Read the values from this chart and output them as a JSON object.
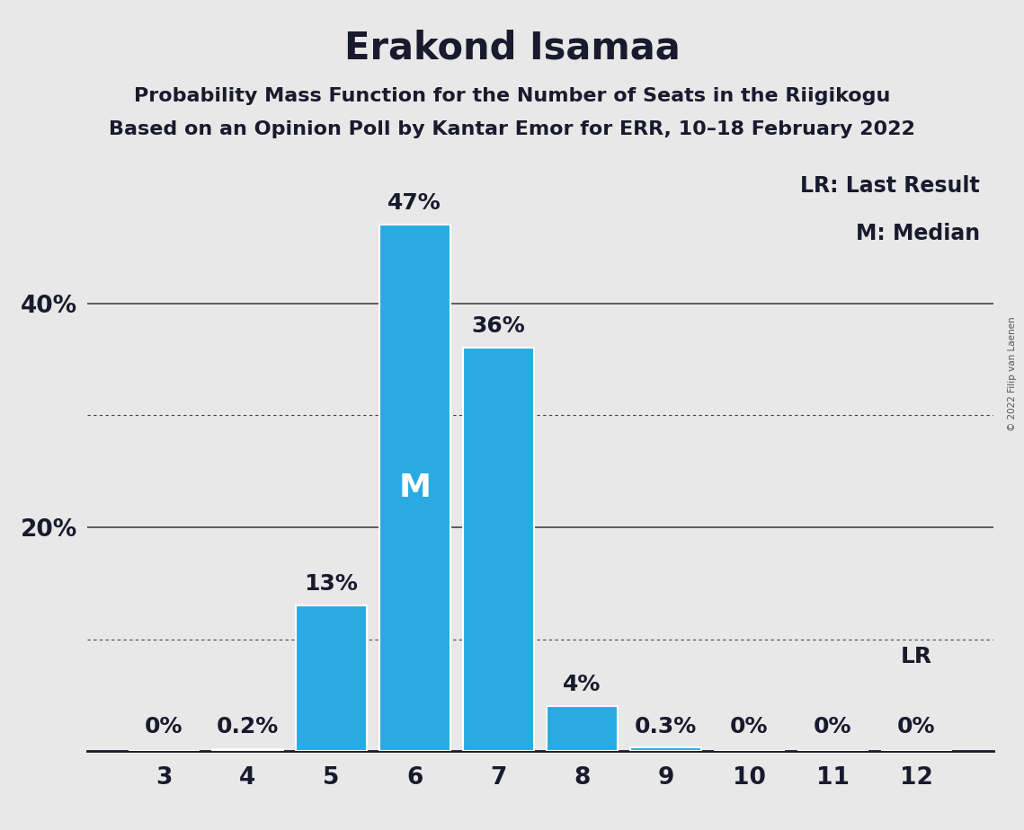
{
  "title": "Erakond Isamaa",
  "subtitle1": "Probability Mass Function for the Number of Seats in the Riigikogu",
  "subtitle2": "Based on an Opinion Poll by Kantar Emor for ERR, 10–18 February 2022",
  "copyright": "© 2022 Filip van Laenen",
  "categories": [
    3,
    4,
    5,
    6,
    7,
    8,
    9,
    10,
    11,
    12
  ],
  "values": [
    0.0,
    0.2,
    13.0,
    47.0,
    36.0,
    4.0,
    0.3,
    0.0,
    0.0,
    0.0
  ],
  "labels": [
    "0%",
    "0.2%",
    "13%",
    "47%",
    "36%",
    "4%",
    "0.3%",
    "0%",
    "0%",
    "0%"
  ],
  "bar_color": "#29ABE2",
  "median_bar": 6,
  "lr_bar": 12,
  "lr_label": "LR",
  "median_label": "M",
  "legend_lr": "LR: Last Result",
  "legend_m": "M: Median",
  "background_color": "#E8E8E8",
  "bar_edge_color": "#FFFFFF",
  "ylim": [
    0,
    53
  ],
  "ytick_positions": [
    20,
    40
  ],
  "ytick_labels": [
    "20%",
    "40%"
  ],
  "grid_solid": [
    20,
    40
  ],
  "grid_dotted": [
    10,
    30
  ],
  "title_fontsize": 30,
  "subtitle_fontsize": 16,
  "axis_label_fontsize": 19,
  "bar_label_fontsize": 18,
  "median_label_fontsize": 26,
  "legend_fontsize": 17,
  "text_color": "#1a1a2e"
}
